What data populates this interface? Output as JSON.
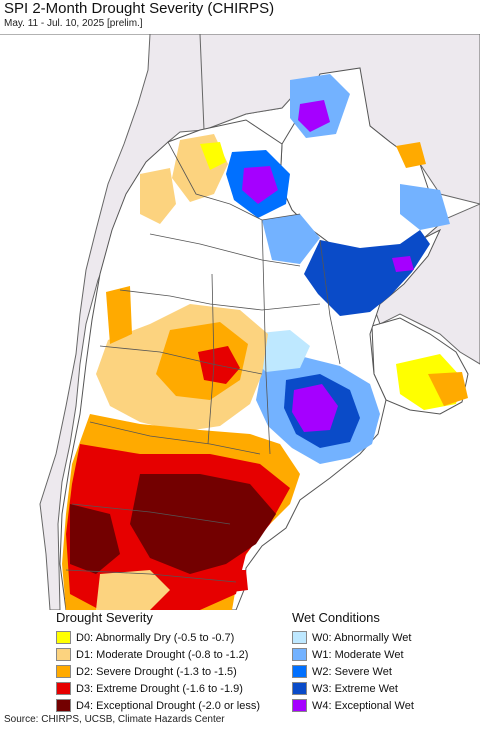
{
  "title": "SPI 2-Month Drought Severity (CHIRPS)",
  "subtitle": "May. 11 - Jul. 10, 2025 [prelim.]",
  "legend": {
    "drought_heading": "Drought Severity",
    "drought_items": [
      {
        "label": "D0: Abnormally Dry (-0.5 to -0.7)",
        "color": "#ffff00"
      },
      {
        "label": "D1: Moderate Drought (-0.8 to -1.2)",
        "color": "#fcd37f"
      },
      {
        "label": "D2: Severe Drought (-1.3 to -1.5)",
        "color": "#ffaa00"
      },
      {
        "label": "D3: Extreme Drought (-1.6 to -1.9)",
        "color": "#e60000"
      },
      {
        "label": "D4: Exceptional Drought (-2.0 or less)",
        "color": "#730000"
      }
    ],
    "wet_heading": "Wet Conditions",
    "wet_items": [
      {
        "label": "W0: Abnormally Wet",
        "color": "#bee8ff"
      },
      {
        "label": "W1: Moderate Wet",
        "color": "#73b2ff"
      },
      {
        "label": "W2: Severe Wet",
        "color": "#0070ff"
      },
      {
        "label": "W3: Extreme Wet",
        "color": "#0a4bc8"
      },
      {
        "label": "W4: Exceptional Wet",
        "color": "#a500ff"
      }
    ]
  },
  "map": {
    "land_color": "#ffffff",
    "outside_color": "#ede9ee",
    "ocean_color": "#ffffff",
    "boundary_color": "#555555"
  },
  "source": "Source: CHIRPS, UCSB, Climate Hazards Center"
}
